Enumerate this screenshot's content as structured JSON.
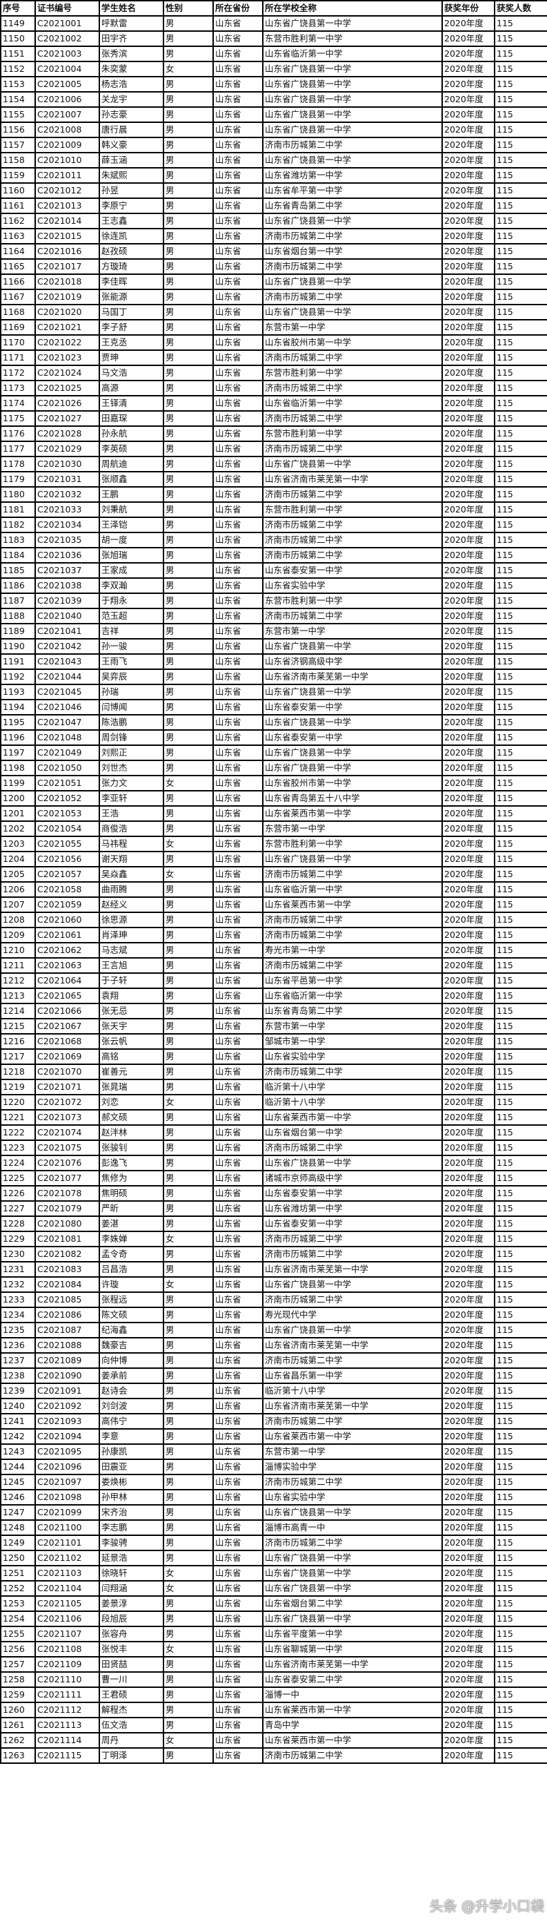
{
  "headers": [
    "序号",
    "证书编号",
    "学生姓名",
    "性别",
    "所在省份",
    "所在学校全称",
    "获奖年份",
    "获奖人数"
  ],
  "rows": [
    [
      "1149",
      "C2021001",
      "呼默雷",
      "男",
      "山东省",
      "山东省广饶县第一中学",
      "2020年度",
      "115"
    ],
    [
      "1150",
      "C2021002",
      "田宇齐",
      "男",
      "山东省",
      "东营市胜利第一中学",
      "2020年度",
      "115"
    ],
    [
      "1151",
      "C2021003",
      "张秀滨",
      "男",
      "山东省",
      "山东省临沂第一中学",
      "2020年度",
      "115"
    ],
    [
      "1152",
      "C2021004",
      "朱奕蒙",
      "女",
      "山东省",
      "山东省广饶县第一中学",
      "2020年度",
      "115"
    ],
    [
      "1153",
      "C2021005",
      "杨志浩",
      "男",
      "山东省",
      "山东省广饶县第一中学",
      "2020年度",
      "115"
    ],
    [
      "1154",
      "C2021006",
      "关龙宇",
      "男",
      "山东省",
      "山东省广饶县第一中学",
      "2020年度",
      "115"
    ],
    [
      "1155",
      "C2021007",
      "孙志豪",
      "男",
      "山东省",
      "山东省广饶县第一中学",
      "2020年度",
      "115"
    ],
    [
      "1156",
      "C2021008",
      "唐行晨",
      "男",
      "山东省",
      "山东省广饶县第一中学",
      "2020年度",
      "115"
    ],
    [
      "1157",
      "C2021009",
      "韩义豪",
      "男",
      "山东省",
      "济南市历城第二中学",
      "2020年度",
      "115"
    ],
    [
      "1158",
      "C2021010",
      "薛玉涵",
      "男",
      "山东省",
      "山东省广饶县第一中学",
      "2020年度",
      "115"
    ],
    [
      "1159",
      "C2021011",
      "朱斌熙",
      "男",
      "山东省",
      "山东省潍坊第一中学",
      "2020年度",
      "115"
    ],
    [
      "1160",
      "C2021012",
      "孙昱",
      "男",
      "山东省",
      "山东省牟平第一中学",
      "2020年度",
      "115"
    ],
    [
      "1161",
      "C2021013",
      "李原宁",
      "男",
      "山东省",
      "山东省青岛第二中学",
      "2020年度",
      "115"
    ],
    [
      "1162",
      "C2021014",
      "王志鑫",
      "男",
      "山东省",
      "山东省广饶县第一中学",
      "2020年度",
      "115"
    ],
    [
      "1163",
      "C2021015",
      "徐连凯",
      "男",
      "山东省",
      "济南市历城第二中学",
      "2020年度",
      "115"
    ],
    [
      "1164",
      "C2021016",
      "赵孜硕",
      "男",
      "山东省",
      "山东省烟台第一中学",
      "2020年度",
      "115"
    ],
    [
      "1165",
      "C2021017",
      "方璇琦",
      "男",
      "山东省",
      "济南市历城第二中学",
      "2020年度",
      "115"
    ],
    [
      "1166",
      "C2021018",
      "李佳晖",
      "男",
      "山东省",
      "山东省广饶县第一中学",
      "2020年度",
      "115"
    ],
    [
      "1167",
      "C2021019",
      "张能源",
      "男",
      "山东省",
      "济南市历城第二中学",
      "2020年度",
      "115"
    ],
    [
      "1168",
      "C2021020",
      "马国丁",
      "男",
      "山东省",
      "山东省广饶县第一中学",
      "2020年度",
      "115"
    ],
    [
      "1169",
      "C2021021",
      "李子舒",
      "男",
      "山东省",
      "东营市第一中学",
      "2020年度",
      "115"
    ],
    [
      "1170",
      "C2021022",
      "王克丞",
      "男",
      "山东省",
      "山东省胶州市第一中学",
      "2020年度",
      "115"
    ],
    [
      "1171",
      "C2021023",
      "贾珅",
      "男",
      "山东省",
      "济南市历城第二中学",
      "2020年度",
      "115"
    ],
    [
      "1172",
      "C2021024",
      "马文浩",
      "男",
      "山东省",
      "东营市胜利第一中学",
      "2020年度",
      "115"
    ],
    [
      "1173",
      "C2021025",
      "高源",
      "男",
      "山东省",
      "济南市历城第二中学",
      "2020年度",
      "115"
    ],
    [
      "1174",
      "C2021026",
      "王铎清",
      "男",
      "山东省",
      "山东省临沂第一中学",
      "2020年度",
      "115"
    ],
    [
      "1175",
      "C2021027",
      "田嘉琛",
      "男",
      "山东省",
      "济南市历城第二中学",
      "2020年度",
      "115"
    ],
    [
      "1176",
      "C2021028",
      "孙永航",
      "男",
      "山东省",
      "东营市胜利第一中学",
      "2020年度",
      "115"
    ],
    [
      "1177",
      "C2021029",
      "李英硕",
      "男",
      "山东省",
      "济南市历城第二中学",
      "2020年度",
      "115"
    ],
    [
      "1178",
      "C2021030",
      "周航迪",
      "男",
      "山东省",
      "山东省广饶县第一中学",
      "2020年度",
      "115"
    ],
    [
      "1179",
      "C2021031",
      "张顺鑫",
      "男",
      "山东省",
      "山东省济南市莱芜第一中学",
      "2020年度",
      "115"
    ],
    [
      "1180",
      "C2021032",
      "王鹏",
      "男",
      "山东省",
      "济南市历城第二中学",
      "2020年度",
      "115"
    ],
    [
      "1181",
      "C2021033",
      "刘秉航",
      "男",
      "山东省",
      "东营市胜利第一中学",
      "2020年度",
      "115"
    ],
    [
      "1182",
      "C2021034",
      "王泽铠",
      "男",
      "山东省",
      "济南市历城第二中学",
      "2020年度",
      "115"
    ],
    [
      "1183",
      "C2021035",
      "胡一度",
      "男",
      "山东省",
      "济南市历城第二中学",
      "2020年度",
      "115"
    ],
    [
      "1184",
      "C2021036",
      "张旭瑞",
      "男",
      "山东省",
      "济南市历城第二中学",
      "2020年度",
      "115"
    ],
    [
      "1185",
      "C2021037",
      "王家成",
      "男",
      "山东省",
      "山东省泰安第一中学",
      "2020年度",
      "115"
    ],
    [
      "1186",
      "C2021038",
      "李双瀚",
      "男",
      "山东省",
      "山东省实验中学",
      "2020年度",
      "115"
    ],
    [
      "1187",
      "C2021039",
      "于翔永",
      "男",
      "山东省",
      "东营市胜利第一中学",
      "2020年度",
      "115"
    ],
    [
      "1188",
      "C2021040",
      "范玉超",
      "男",
      "山东省",
      "济南市历城第二中学",
      "2020年度",
      "115"
    ],
    [
      "1189",
      "C2021041",
      "吉祥",
      "男",
      "山东省",
      "东营市第一中学",
      "2020年度",
      "115"
    ],
    [
      "1190",
      "C2021042",
      "孙一骏",
      "男",
      "山东省",
      "山东省广饶县第一中学",
      "2020年度",
      "115"
    ],
    [
      "1191",
      "C2021043",
      "王雨飞",
      "男",
      "山东省",
      "山东省济钢高级中学",
      "2020年度",
      "115"
    ],
    [
      "1192",
      "C2021044",
      "吴弈辰",
      "男",
      "山东省",
      "山东省济南市莱芜第一中学",
      "2020年度",
      "115"
    ],
    [
      "1193",
      "C2021045",
      "孙瑞",
      "男",
      "山东省",
      "山东省广饶县第一中学",
      "2020年度",
      "115"
    ],
    [
      "1194",
      "C2021046",
      "闫博闻",
      "男",
      "山东省",
      "山东省泰安第一中学",
      "2020年度",
      "115"
    ],
    [
      "1195",
      "C2021047",
      "陈浩鹏",
      "男",
      "山东省",
      "山东省广饶县第一中学",
      "2020年度",
      "115"
    ],
    [
      "1196",
      "C2021048",
      "周剑锋",
      "男",
      "山东省",
      "山东省泰安第一中学",
      "2020年度",
      "115"
    ],
    [
      "1197",
      "C2021049",
      "刘熙正",
      "男",
      "山东省",
      "山东省广饶县第一中学",
      "2020年度",
      "115"
    ],
    [
      "1198",
      "C2021050",
      "刘世杰",
      "男",
      "山东省",
      "山东省广饶县第一中学",
      "2020年度",
      "115"
    ],
    [
      "1199",
      "C2021051",
      "张力文",
      "女",
      "山东省",
      "山东省胶州市第一中学",
      "2020年度",
      "115"
    ],
    [
      "1200",
      "C2021052",
      "李亚轩",
      "男",
      "山东省",
      "山东省青岛第五十八中学",
      "2020年度",
      "115"
    ],
    [
      "1201",
      "C2021053",
      "王浩",
      "男",
      "山东省",
      "山东省莱西市第一中学",
      "2020年度",
      "115"
    ],
    [
      "1202",
      "C2021054",
      "商俊浩",
      "男",
      "山东省",
      "东营市第一中学",
      "2020年度",
      "115"
    ],
    [
      "1203",
      "C2021055",
      "马祎程",
      "女",
      "山东省",
      "东营市胜利第一中学",
      "2020年度",
      "115"
    ],
    [
      "1204",
      "C2021056",
      "谢天翔",
      "男",
      "山东省",
      "山东省广饶县第一中学",
      "2020年度",
      "115"
    ],
    [
      "1205",
      "C2021057",
      "吴焱鑫",
      "女",
      "山东省",
      "济南市历城第二中学",
      "2020年度",
      "115"
    ],
    [
      "1206",
      "C2021058",
      "曲雨腾",
      "男",
      "山东省",
      "山东省临沂第一中学",
      "2020年度",
      "115"
    ],
    [
      "1207",
      "C2021059",
      "赵经义",
      "男",
      "山东省",
      "山东省莱西市第一中学",
      "2020年度",
      "115"
    ],
    [
      "1208",
      "C2021060",
      "徐思源",
      "男",
      "山东省",
      "济南市历城第二中学",
      "2020年度",
      "115"
    ],
    [
      "1209",
      "C2021061",
      "肖泽珅",
      "男",
      "山东省",
      "济南市历城第二中学",
      "2020年度",
      "115"
    ],
    [
      "1210",
      "C2021062",
      "马志斌",
      "男",
      "山东省",
      "寿光市第一中学",
      "2020年度",
      "115"
    ],
    [
      "1211",
      "C2021063",
      "王言旭",
      "男",
      "山东省",
      "济南市历城第二中学",
      "2020年度",
      "115"
    ],
    [
      "1212",
      "C2021064",
      "于子轩",
      "男",
      "山东省",
      "山东省平邑第一中学",
      "2020年度",
      "115"
    ],
    [
      "1213",
      "C2021065",
      "袁翔",
      "男",
      "山东省",
      "山东省临沂第一中学",
      "2020年度",
      "115"
    ],
    [
      "1214",
      "C2021066",
      "张无忌",
      "男",
      "山东省",
      "山东省青岛第二中学",
      "2020年度",
      "115"
    ],
    [
      "1215",
      "C2021067",
      "张天宇",
      "男",
      "山东省",
      "东营市第一中学",
      "2020年度",
      "115"
    ],
    [
      "1216",
      "C2021068",
      "张云帆",
      "男",
      "山东省",
      "邹城市第一中学",
      "2020年度",
      "115"
    ],
    [
      "1217",
      "C2021069",
      "高铭",
      "男",
      "山东省",
      "山东省实验中学",
      "2020年度",
      "115"
    ],
    [
      "1218",
      "C2021070",
      "崔善元",
      "男",
      "山东省",
      "济南市历城第二中学",
      "2020年度",
      "115"
    ],
    [
      "1219",
      "C2021071",
      "张晁瑞",
      "男",
      "山东省",
      "临沂第十八中学",
      "2020年度",
      "115"
    ],
    [
      "1220",
      "C2021072",
      "刘恋",
      "女",
      "山东省",
      "临沂第十八中学",
      "2020年度",
      "115"
    ],
    [
      "1221",
      "C2021073",
      "郝文硕",
      "男",
      "山东省",
      "山东省莱西市第一中学",
      "2020年度",
      "115"
    ],
    [
      "1222",
      "C2021074",
      "赵泮林",
      "男",
      "山东省",
      "山东省烟台第一中学",
      "2020年度",
      "115"
    ],
    [
      "1223",
      "C2021075",
      "张骏钊",
      "男",
      "山东省",
      "济南市历城第二中学",
      "2020年度",
      "115"
    ],
    [
      "1224",
      "C2021076",
      "彭逸飞",
      "男",
      "山东省",
      "山东省广饶县第一中学",
      "2020年度",
      "115"
    ],
    [
      "1225",
      "C2021077",
      "焦修为",
      "男",
      "山东省",
      "诸城市京师高级中学",
      "2020年度",
      "115"
    ],
    [
      "1226",
      "C2021078",
      "焦明硕",
      "男",
      "山东省",
      "山东省泰安第一中学",
      "2020年度",
      "115"
    ],
    [
      "1227",
      "C2021079",
      "严昕",
      "男",
      "山东省",
      "山东省潍坊第一中学",
      "2020年度",
      "115"
    ],
    [
      "1228",
      "C2021080",
      "姜湛",
      "男",
      "山东省",
      "山东省泰安第一中学",
      "2020年度",
      "115"
    ],
    [
      "1229",
      "C2021081",
      "李姝婵",
      "女",
      "山东省",
      "济南市历城第二中学",
      "2020年度",
      "115"
    ],
    [
      "1230",
      "C2021082",
      "孟令奇",
      "男",
      "山东省",
      "济南市历城第二中学",
      "2020年度",
      "115"
    ],
    [
      "1231",
      "C2021083",
      "吕昌浩",
      "男",
      "山东省",
      "山东省济南市莱芜第一中学",
      "2020年度",
      "115"
    ],
    [
      "1232",
      "C2021084",
      "许璇",
      "女",
      "山东省",
      "山东省广饶县第一中学",
      "2020年度",
      "115"
    ],
    [
      "1233",
      "C2021085",
      "张程远",
      "男",
      "山东省",
      "济南市历城第二中学",
      "2020年度",
      "115"
    ],
    [
      "1234",
      "C2021086",
      "陈文硕",
      "男",
      "山东省",
      "寿光现代中学",
      "2020年度",
      "115"
    ],
    [
      "1235",
      "C2021087",
      "纪海鑫",
      "男",
      "山东省",
      "山东省广饶县第一中学",
      "2020年度",
      "115"
    ],
    [
      "1236",
      "C2021088",
      "魏豪吉",
      "男",
      "山东省",
      "山东省济南市莱芜第一中学",
      "2020年度",
      "115"
    ],
    [
      "1237",
      "C2021089",
      "向仲博",
      "男",
      "山东省",
      "济南市历城第二中学",
      "2020年度",
      "115"
    ],
    [
      "1238",
      "C2021090",
      "姜承前",
      "男",
      "山东省",
      "山东省昌乐第一中学",
      "2020年度",
      "115"
    ],
    [
      "1239",
      "C2021091",
      "赵诗会",
      "男",
      "山东省",
      "临沂第十八中学",
      "2020年度",
      "115"
    ],
    [
      "1240",
      "C2021092",
      "刘剑波",
      "男",
      "山东省",
      "山东省济南市莱芜第一中学",
      "2020年度",
      "115"
    ],
    [
      "1241",
      "C2021093",
      "高伟宁",
      "男",
      "山东省",
      "济南市历城第二中学",
      "2020年度",
      "115"
    ],
    [
      "1242",
      "C2021094",
      "李意",
      "男",
      "山东省",
      "山东省莱西市第一中学",
      "2020年度",
      "115"
    ],
    [
      "1243",
      "C2021095",
      "孙康凯",
      "男",
      "山东省",
      "东营市第一中学",
      "2020年度",
      "115"
    ],
    [
      "1244",
      "C2021096",
      "田震亚",
      "男",
      "山东省",
      "淄博实验中学",
      "2020年度",
      "115"
    ],
    [
      "1245",
      "C2021097",
      "娄焕彬",
      "男",
      "山东省",
      "济南市历城第二中学",
      "2020年度",
      "115"
    ],
    [
      "1246",
      "C2021098",
      "孙甲林",
      "男",
      "山东省",
      "山东省实验中学",
      "2020年度",
      "115"
    ],
    [
      "1247",
      "C2021099",
      "宋齐治",
      "男",
      "山东省",
      "山东省广饶县第一中学",
      "2020年度",
      "115"
    ],
    [
      "1248",
      "C2021100",
      "李志鹏",
      "男",
      "山东省",
      "淄博市高青一中",
      "2020年度",
      "115"
    ],
    [
      "1249",
      "C2021101",
      "李骏骋",
      "男",
      "山东省",
      "济南市历城第二中学",
      "2020年度",
      "115"
    ],
    [
      "1250",
      "C2021102",
      "延景浩",
      "男",
      "山东省",
      "山东省广饶县第一中学",
      "2020年度",
      "115"
    ],
    [
      "1251",
      "C2021103",
      "徐晓轩",
      "女",
      "山东省",
      "山东省广饶县第一中学",
      "2020年度",
      "115"
    ],
    [
      "1252",
      "C2021104",
      "闫翔涵",
      "女",
      "山东省",
      "山东省广饶县第一中学",
      "2020年度",
      "115"
    ],
    [
      "1253",
      "C2021105",
      "姜景淳",
      "男",
      "山东省",
      "山东省烟台第二中学",
      "2020年度",
      "115"
    ],
    [
      "1254",
      "C2021106",
      "段旭辰",
      "男",
      "山东省",
      "山东省广饶县第一中学",
      "2020年度",
      "115"
    ],
    [
      "1255",
      "C2021107",
      "张容舟",
      "男",
      "山东省",
      "山东省平度第一中学",
      "2020年度",
      "115"
    ],
    [
      "1256",
      "C2021108",
      "张悦丰",
      "女",
      "山东省",
      "山东省聊城第一中学",
      "2020年度",
      "115"
    ],
    [
      "1257",
      "C2021109",
      "田贤喆",
      "男",
      "山东省",
      "山东省济南市莱芜第一中学",
      "2020年度",
      "115"
    ],
    [
      "1258",
      "C2021110",
      "曹一川",
      "男",
      "山东省",
      "山东省泰安第二中学",
      "2020年度",
      "115"
    ],
    [
      "1259",
      "C2021111",
      "王君硕",
      "男",
      "山东省",
      "淄博一中",
      "2020年度",
      "115"
    ],
    [
      "1260",
      "C2021112",
      "解程杰",
      "男",
      "山东省",
      "山东省莱西市第一中学",
      "2020年度",
      "115"
    ],
    [
      "1261",
      "C2021113",
      "伍文浩",
      "男",
      "山东省",
      "青岛中学",
      "2020年度",
      "115"
    ],
    [
      "1262",
      "C2021114",
      "周丹",
      "女",
      "山东省",
      "山东省莱西市第一中学",
      "2020年度",
      "115"
    ],
    [
      "1263",
      "C2021115",
      "丁明泽",
      "男",
      "山东省",
      "济南市历城第二中学",
      "2020年度",
      "115"
    ]
  ],
  "watermark": "头条 @升学小口袋"
}
